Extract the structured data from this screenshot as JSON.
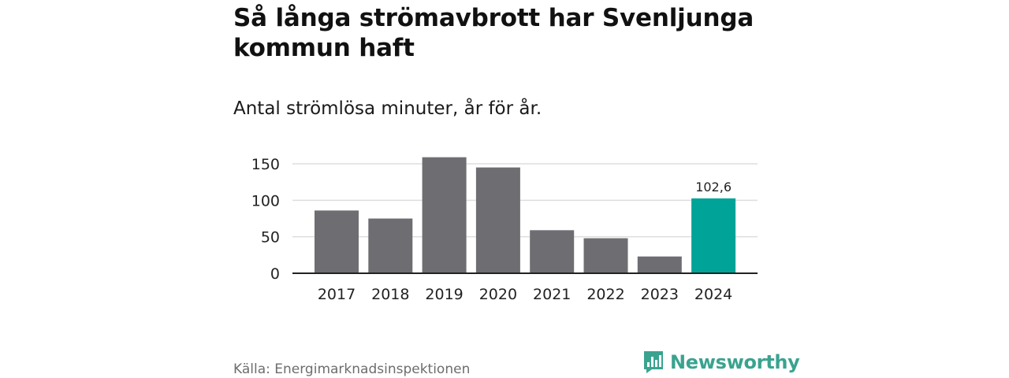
{
  "title": "Så långa strömavbrott har Svenljunga kommun haft",
  "subtitle": "Antal strömlösa minuter, år för år.",
  "source": "Källa: Energimarknadsinspektionen",
  "brand": {
    "name": "Newsworthy",
    "icon": "newsworthy-logo-icon",
    "color": "#3aa38f"
  },
  "colors": {
    "bar": "#6e6d72",
    "highlight": "#00a398",
    "grid": "#dddddd",
    "axis": "#222222"
  },
  "chart_data": {
    "type": "bar",
    "title": "Så långa strömavbrott har Svenljunga kommun haft",
    "subtitle": "Antal strömlösa minuter, år för år.",
    "xlabel": "",
    "ylabel": "",
    "categories": [
      "2017",
      "2018",
      "2019",
      "2020",
      "2021",
      "2022",
      "2023",
      "2024"
    ],
    "values": [
      86,
      75,
      159,
      145,
      59,
      48,
      23,
      102.6
    ],
    "highlight_index": 7,
    "data_labels": [
      {
        "index": 7,
        "text": "102,6"
      }
    ],
    "ylim": [
      0,
      160
    ],
    "yticks": [
      0,
      50,
      100,
      150
    ],
    "grid": true,
    "legend": "none"
  }
}
